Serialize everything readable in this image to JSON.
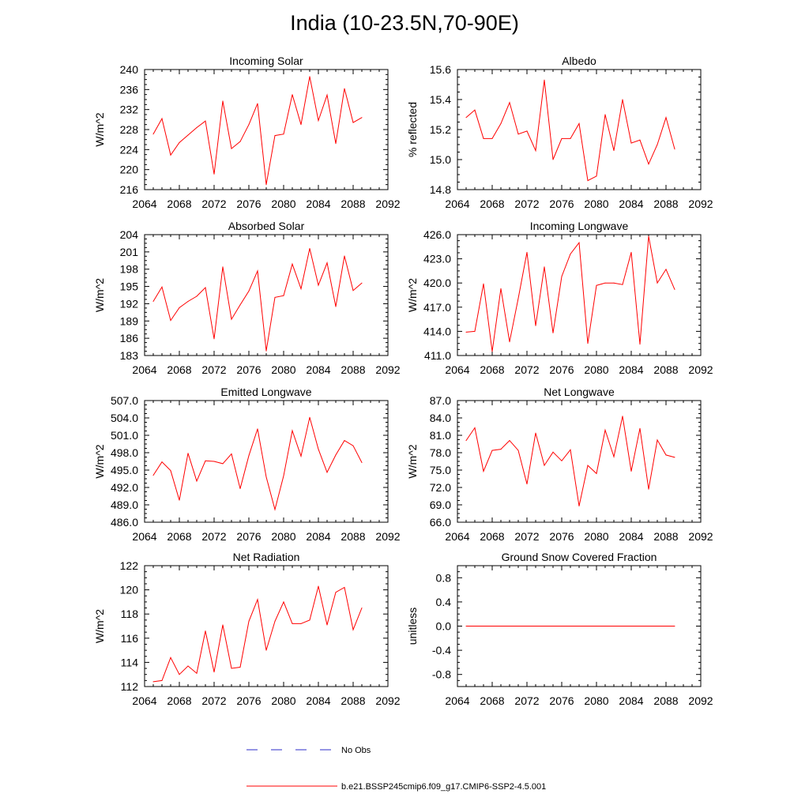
{
  "title": "India (10-23.5N,70-90E)",
  "colors": {
    "model": "#ff0000",
    "obs": "#2b2bc8",
    "axis": "#000000"
  },
  "legend": {
    "obs_label": "No Obs",
    "model_label": "b.e21.BSSP245cmip6.f09_g17.CMIP6-SSP2-4.5.001"
  },
  "chart_data": [
    {
      "type": "line",
      "title": "Incoming Solar",
      "ylabel": "W/m^2",
      "xlim": [
        2064,
        2092
      ],
      "ylim": [
        216,
        240
      ],
      "xticks": [
        "2064",
        "2068",
        "2072",
        "2076",
        "2080",
        "2084",
        "2088",
        "2092"
      ],
      "yticks": [
        "216",
        "220",
        "224",
        "228",
        "232",
        "236",
        "240"
      ],
      "x": [
        2065,
        2066,
        2067,
        2068,
        2069,
        2070,
        2071,
        2072,
        2073,
        2074,
        2075,
        2076,
        2077,
        2078,
        2079,
        2080,
        2081,
        2082,
        2083,
        2084,
        2085,
        2086,
        2087,
        2088,
        2089
      ],
      "series": [
        {
          "name": "b.e21.BSSP245cmip6.f09_g17.CMIP6-SSP2-4.5.001",
          "values": [
            227.1,
            230.2,
            222.9,
            225.4,
            226.9,
            228.4,
            229.7,
            219.1,
            233.7,
            224.2,
            225.6,
            229.0,
            233.2,
            217.0,
            226.8,
            227.1,
            235.0,
            229.0,
            238.6,
            229.8,
            234.9,
            225.2,
            236.2,
            229.4,
            230.4
          ]
        }
      ]
    },
    {
      "type": "line",
      "title": "Albedo",
      "ylabel": "% reflected",
      "xlim": [
        2064,
        2092
      ],
      "ylim": [
        14.8,
        15.6
      ],
      "xticks": [
        "2064",
        "2068",
        "2072",
        "2076",
        "2080",
        "2084",
        "2088",
        "2092"
      ],
      "yticks": [
        "14.8",
        "15.0",
        "15.2",
        "15.4",
        "15.6"
      ],
      "x": [
        2065,
        2066,
        2067,
        2068,
        2069,
        2070,
        2071,
        2072,
        2073,
        2074,
        2075,
        2076,
        2077,
        2078,
        2079,
        2080,
        2081,
        2082,
        2083,
        2084,
        2085,
        2086,
        2087,
        2088,
        2089
      ],
      "series": [
        {
          "name": "b.e21.BSSP245cmip6.f09_g17.CMIP6-SSP2-4.5.001",
          "values": [
            15.28,
            15.33,
            15.14,
            15.14,
            15.24,
            15.38,
            15.17,
            15.19,
            15.06,
            15.53,
            15.0,
            15.14,
            15.14,
            15.24,
            14.86,
            14.89,
            15.3,
            15.06,
            15.4,
            15.11,
            15.13,
            14.97,
            15.1,
            15.28,
            15.07
          ]
        }
      ]
    },
    {
      "type": "line",
      "title": "Absorbed Solar",
      "ylabel": "W/m^2",
      "xlim": [
        2064,
        2092
      ],
      "ylim": [
        183,
        204
      ],
      "xticks": [
        "2064",
        "2068",
        "2072",
        "2076",
        "2080",
        "2084",
        "2088",
        "2092"
      ],
      "yticks": [
        "183",
        "186",
        "189",
        "192",
        "195",
        "198",
        "201",
        "204"
      ],
      "x": [
        2065,
        2066,
        2067,
        2068,
        2069,
        2070,
        2071,
        2072,
        2073,
        2074,
        2075,
        2076,
        2077,
        2078,
        2079,
        2080,
        2081,
        2082,
        2083,
        2084,
        2085,
        2086,
        2087,
        2088,
        2089
      ],
      "series": [
        {
          "name": "b.e21.BSSP245cmip6.f09_g17.CMIP6-SSP2-4.5.001",
          "values": [
            192.4,
            194.9,
            189.1,
            191.3,
            192.4,
            193.3,
            194.8,
            185.9,
            198.4,
            189.3,
            191.8,
            194.2,
            197.7,
            183.8,
            193.1,
            193.4,
            198.9,
            194.6,
            201.6,
            195.2,
            199.1,
            191.5,
            200.3,
            194.3,
            195.6
          ]
        }
      ]
    },
    {
      "type": "line",
      "title": "Incoming Longwave",
      "ylabel": "W/m^2",
      "xlim": [
        2064,
        2092
      ],
      "ylim": [
        411.0,
        426.0
      ],
      "xticks": [
        "2064",
        "2068",
        "2072",
        "2076",
        "2080",
        "2084",
        "2088",
        "2092"
      ],
      "yticks": [
        "411.0",
        "414.0",
        "417.0",
        "420.0",
        "423.0",
        "426.0"
      ],
      "x": [
        2065,
        2066,
        2067,
        2068,
        2069,
        2070,
        2071,
        2072,
        2073,
        2074,
        2075,
        2076,
        2077,
        2078,
        2079,
        2080,
        2081,
        2082,
        2083,
        2084,
        2085,
        2086,
        2087,
        2088,
        2089
      ],
      "series": [
        {
          "name": "b.e21.BSSP245cmip6.f09_g17.CMIP6-SSP2-4.5.001",
          "values": [
            413.9,
            414.0,
            419.9,
            411.5,
            419.3,
            412.7,
            418.1,
            423.8,
            414.7,
            422.0,
            413.8,
            420.8,
            423.6,
            425.0,
            412.5,
            419.7,
            420.0,
            420.0,
            419.8,
            423.8,
            412.4,
            425.8,
            420.0,
            421.7,
            419.2
          ]
        }
      ]
    },
    {
      "type": "line",
      "title": "Emitted Longwave",
      "ylabel": "W/m^2",
      "xlim": [
        2064,
        2092
      ],
      "ylim": [
        486.0,
        507.0
      ],
      "xticks": [
        "2064",
        "2068",
        "2072",
        "2076",
        "2080",
        "2084",
        "2088",
        "2092"
      ],
      "yticks": [
        "486.0",
        "489.0",
        "492.0",
        "495.0",
        "498.0",
        "501.0",
        "504.0",
        "507.0"
      ],
      "x": [
        2065,
        2066,
        2067,
        2068,
        2069,
        2070,
        2071,
        2072,
        2073,
        2074,
        2075,
        2076,
        2077,
        2078,
        2079,
        2080,
        2081,
        2082,
        2083,
        2084,
        2085,
        2086,
        2087,
        2088,
        2089
      ],
      "series": [
        {
          "name": "b.e21.BSSP245cmip6.f09_g17.CMIP6-SSP2-4.5.001",
          "values": [
            494.1,
            496.4,
            494.9,
            489.8,
            497.9,
            493.1,
            496.6,
            496.5,
            496.1,
            497.8,
            491.8,
            497.5,
            502.1,
            493.8,
            488.2,
            494.0,
            501.8,
            497.4,
            504.1,
            498.6,
            494.6,
            497.6,
            500.1,
            499.2,
            496.3
          ]
        }
      ]
    },
    {
      "type": "line",
      "title": "Net Longwave",
      "ylabel": "W/m^2",
      "xlim": [
        2064,
        2092
      ],
      "ylim": [
        66.0,
        87.0
      ],
      "xticks": [
        "2064",
        "2068",
        "2072",
        "2076",
        "2080",
        "2084",
        "2088",
        "2092"
      ],
      "yticks": [
        "66.0",
        "69.0",
        "72.0",
        "75.0",
        "78.0",
        "81.0",
        "84.0",
        "87.0"
      ],
      "x": [
        2065,
        2066,
        2067,
        2068,
        2069,
        2070,
        2071,
        2072,
        2073,
        2074,
        2075,
        2076,
        2077,
        2078,
        2079,
        2080,
        2081,
        2082,
        2083,
        2084,
        2085,
        2086,
        2087,
        2088,
        2089
      ],
      "series": [
        {
          "name": "b.e21.BSSP245cmip6.f09_g17.CMIP6-SSP2-4.5.001",
          "values": [
            80.1,
            82.3,
            74.8,
            78.4,
            78.6,
            80.1,
            78.4,
            72.6,
            81.4,
            75.8,
            78.1,
            76.6,
            78.5,
            68.8,
            75.8,
            74.4,
            81.9,
            77.3,
            84.3,
            74.8,
            82.2,
            71.7,
            80.2,
            77.6,
            77.2
          ]
        }
      ]
    },
    {
      "type": "line",
      "title": "Net Radiation",
      "ylabel": "W/m^2",
      "xlim": [
        2064,
        2092
      ],
      "ylim": [
        112,
        122
      ],
      "xticks": [
        "2064",
        "2068",
        "2072",
        "2076",
        "2080",
        "2084",
        "2088",
        "2092"
      ],
      "yticks": [
        "112",
        "114",
        "116",
        "118",
        "120",
        "122"
      ],
      "x": [
        2065,
        2066,
        2067,
        2068,
        2069,
        2070,
        2071,
        2072,
        2073,
        2074,
        2075,
        2076,
        2077,
        2078,
        2079,
        2080,
        2081,
        2082,
        2083,
        2084,
        2085,
        2086,
        2087,
        2088,
        2089
      ],
      "series": [
        {
          "name": "b.e21.BSSP245cmip6.f09_g17.CMIP6-SSP2-4.5.001",
          "values": [
            112.4,
            112.5,
            114.4,
            113.0,
            113.7,
            113.1,
            116.6,
            113.2,
            117.1,
            113.5,
            113.6,
            117.4,
            119.2,
            115.0,
            117.4,
            119.0,
            117.2,
            117.2,
            117.5,
            120.3,
            117.1,
            119.8,
            120.2,
            116.7,
            118.5
          ]
        }
      ]
    },
    {
      "type": "line",
      "title": "Ground Snow Covered Fraction",
      "ylabel": "unitless",
      "xlim": [
        2064,
        2092
      ],
      "ylim": [
        -1.0,
        1.0
      ],
      "xticks": [
        "2064",
        "2068",
        "2072",
        "2076",
        "2080",
        "2084",
        "2088",
        "2092"
      ],
      "yticks": [
        "-0.8",
        "-0.4",
        "0.0",
        "0.4",
        "0.8"
      ],
      "x": [
        2065,
        2066,
        2067,
        2068,
        2069,
        2070,
        2071,
        2072,
        2073,
        2074,
        2075,
        2076,
        2077,
        2078,
        2079,
        2080,
        2081,
        2082,
        2083,
        2084,
        2085,
        2086,
        2087,
        2088,
        2089
      ],
      "series": [
        {
          "name": "b.e21.BSSP245cmip6.f09_g17.CMIP6-SSP2-4.5.001",
          "values": [
            0,
            0,
            0,
            0,
            0,
            0,
            0,
            0,
            0,
            0,
            0,
            0,
            0,
            0,
            0,
            0,
            0,
            0,
            0,
            0,
            0,
            0,
            0,
            0,
            0
          ]
        }
      ]
    }
  ]
}
